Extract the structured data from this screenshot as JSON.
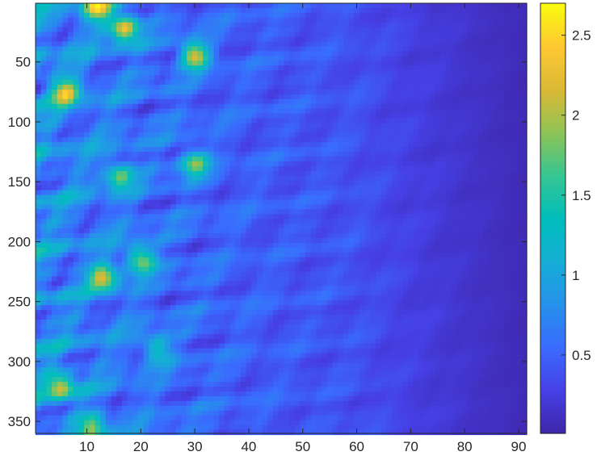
{
  "chart_data": {
    "type": "heatmap",
    "title": "",
    "xlabel": "",
    "ylabel": "",
    "x_range": [
      0.5,
      91.5
    ],
    "y_range": [
      1,
      360
    ],
    "y_direction": "reverse",
    "x_ticks": [
      {
        "value": 10,
        "label": "10"
      },
      {
        "value": 20,
        "label": "20"
      },
      {
        "value": 30,
        "label": "30"
      },
      {
        "value": 40,
        "label": "40"
      },
      {
        "value": 50,
        "label": "50"
      },
      {
        "value": 60,
        "label": "60"
      },
      {
        "value": 70,
        "label": "70"
      },
      {
        "value": 80,
        "label": "80"
      },
      {
        "value": 90,
        "label": "90"
      }
    ],
    "y_ticks": [
      {
        "value": 50,
        "label": "50"
      },
      {
        "value": 100,
        "label": "100"
      },
      {
        "value": 150,
        "label": "150"
      },
      {
        "value": 200,
        "label": "200"
      },
      {
        "value": 250,
        "label": "250"
      },
      {
        "value": 300,
        "label": "300"
      },
      {
        "value": 350,
        "label": "350"
      }
    ],
    "colorbar": {
      "colormap": "parula",
      "range": [
        0.01,
        2.7
      ],
      "ticks": [
        {
          "value": 0.5,
          "label": "0.5"
        },
        {
          "value": 1,
          "label": "1"
        },
        {
          "value": 1.5,
          "label": "1.5"
        },
        {
          "value": 2,
          "label": "2"
        },
        {
          "value": 2.5,
          "label": "2.5"
        }
      ]
    },
    "hotspots": [
      {
        "x": 12,
        "y": 5,
        "value": 2.55
      },
      {
        "x": 17,
        "y": 22,
        "value": 2.6
      },
      {
        "x": 30,
        "y": 45,
        "value": 2.5
      },
      {
        "x": 6,
        "y": 75,
        "value": 2.3
      },
      {
        "x": 30,
        "y": 135,
        "value": 2.1
      },
      {
        "x": 16,
        "y": 145,
        "value": 2.0
      },
      {
        "x": 20,
        "y": 215,
        "value": 2.2
      },
      {
        "x": 13,
        "y": 230,
        "value": 2.3
      },
      {
        "x": 5,
        "y": 320,
        "value": 2.2
      },
      {
        "x": 23,
        "y": 290,
        "value": 1.7
      },
      {
        "x": 11,
        "y": 355,
        "value": 2.0
      }
    ]
  }
}
